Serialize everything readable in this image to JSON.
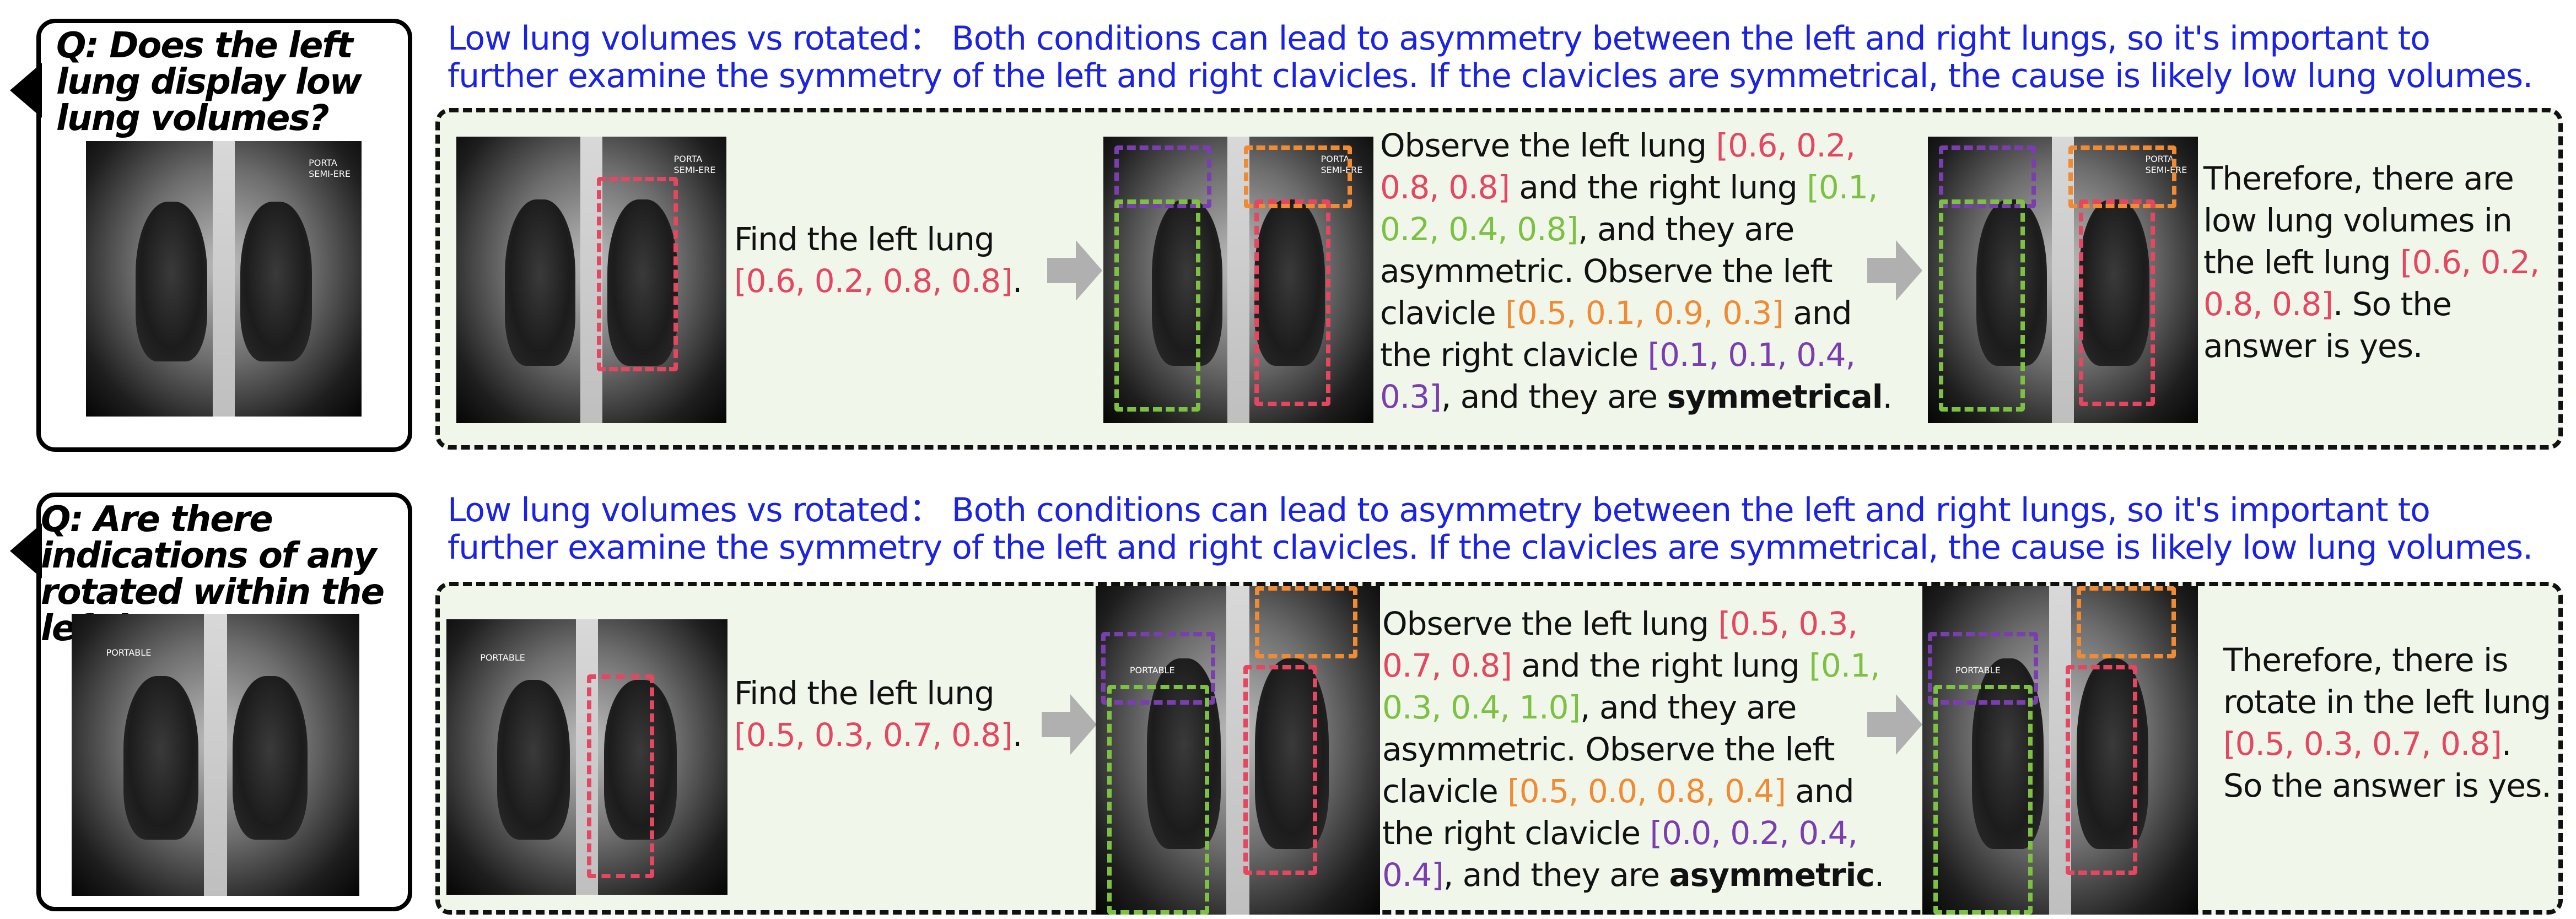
{
  "rows": [
    {
      "question": "Q: Does the left lung display low lung volumes?",
      "explanation_line1": "Low lung volumes vs rotated： Both conditions can lead to asymmetry between the left and right lungs, so it's important to",
      "explanation_line2": "further examine the symmetry of the left and right clavicles. If the clavicles are symmetrical, the cause is likely low lung volumes.",
      "image_label": "PORTA\nSEMI-ERE",
      "step1": {
        "prefix": "Find the left lung",
        "coords": "[0.6, 0.2, 0.8, 0.8]",
        "suffix": "."
      },
      "step2": {
        "t1": "Observe the left lung ",
        "c1": "[0.6, 0.2, 0.8, 0.8]",
        "t2": " and the right lung ",
        "c2": "[0.1, 0.2, 0.4, 0.8]",
        "t3": ", and they are asymmetric. Observe the left clavicle ",
        "c3": "[0.5, 0.1, 0.9, 0.3]",
        "t4": " and the right clavicle ",
        "c4": "[0.1, 0.1, 0.4, 0.3]",
        "t5": ", and they are ",
        "verdict": "symmetrical",
        "t6": "."
      },
      "step3": {
        "t1": "Therefore, there are low lung volumes in the left lung ",
        "c1": "[0.6, 0.2, 0.8, 0.8]",
        "t2": ". So the answer is yes."
      }
    },
    {
      "question": "Q: Are there indications of any rotated within the left lung?",
      "explanation_line1": "Low lung volumes vs rotated： Both conditions can lead to asymmetry between the left and right lungs, so it's important to",
      "explanation_line2": "further examine the symmetry of the left and right clavicles. If the clavicles are symmetrical, the cause is likely low lung volumes.",
      "image_label": "PORTABLE",
      "step1": {
        "prefix": "Find the left lung",
        "coords": "[0.5, 0.3, 0.7, 0.8]",
        "suffix": "."
      },
      "step2": {
        "t1": "Observe the left lung ",
        "c1": "[0.5, 0.3, 0.7, 0.8]",
        "t2": " and the right lung ",
        "c2": "[0.1, 0.3, 0.4, 1.0]",
        "t3": ", and they are asymmetric. Observe the left clavicle ",
        "c3": "[0.5, 0.0, 0.8, 0.4]",
        "t4": " and the right clavicle ",
        "c4": "[0.0, 0.2, 0.4, 0.4]",
        "t5": ", and they are ",
        "verdict": "asymmetric",
        "t6": "."
      },
      "step3": {
        "t1": "Therefore, there is rotate in the left lung ",
        "c1": "[0.5, 0.3, 0.7, 0.8]",
        "t2": ". So the answer is yes."
      }
    }
  ],
  "colors": {
    "explanation": "#1a22e6",
    "left_lung": "#e54660",
    "right_lung": "#7cc142",
    "left_clavicle": "#f08a33",
    "right_clavicle": "#7a3eb0",
    "panel_bg": "#f0f6ea"
  }
}
